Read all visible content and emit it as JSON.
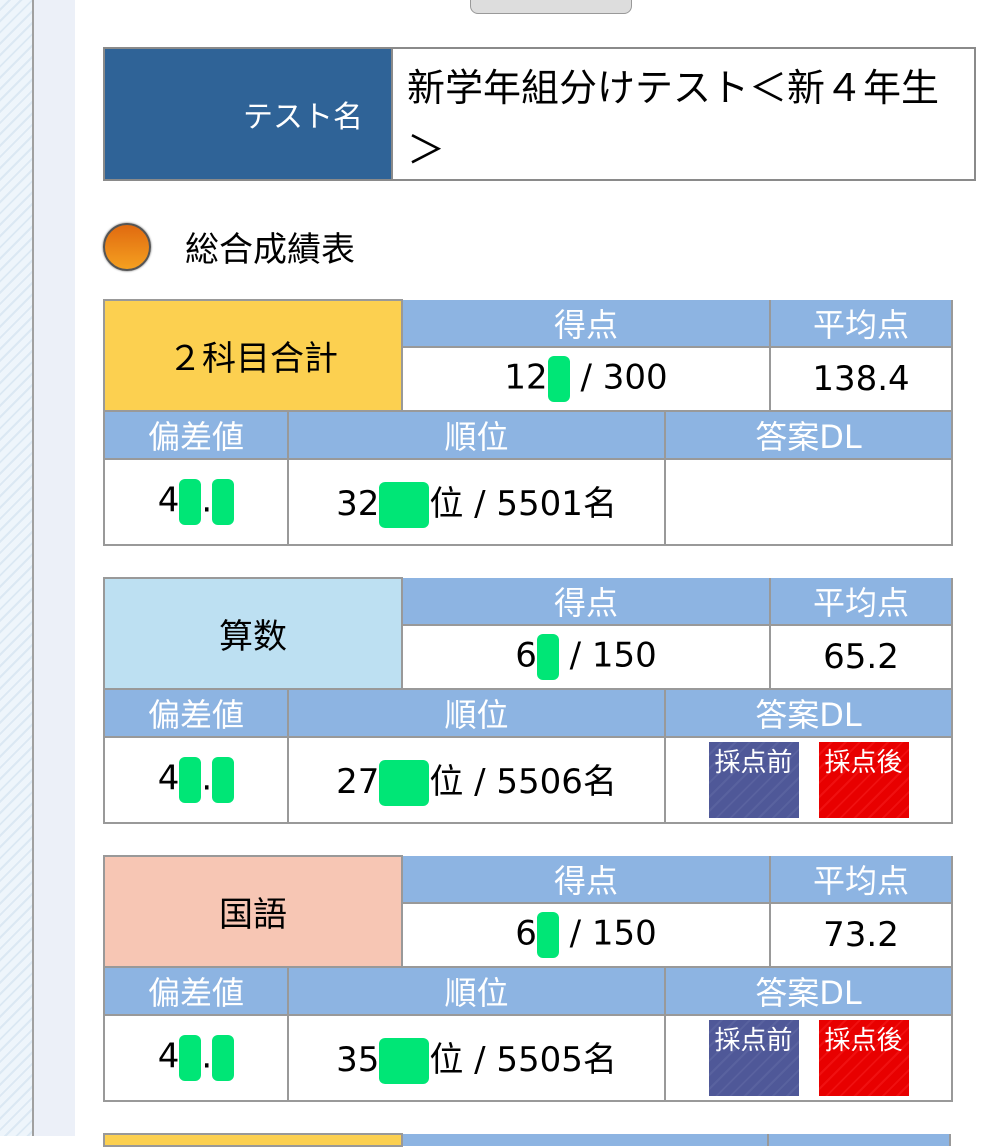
{
  "test_name": {
    "label": "テスト名",
    "value": "新学年組分けテスト＜新４年生＞"
  },
  "section_title": "総合成績表",
  "headers": {
    "score": "得点",
    "average": "平均点",
    "deviation": "偏差値",
    "rank": "順位",
    "answer_dl": "答案DL"
  },
  "buttons": {
    "before": "採点前",
    "after": "採点後"
  },
  "results": [
    {
      "subject": "２科目合計",
      "color": "#fcd050",
      "score_prefix": "12",
      "score_suffix": "/ 300",
      "average": "138.4",
      "dev_prefix": "4",
      "dev_mid": ".",
      "rank_prefix": "32",
      "rank_suffix": "位 / 5501名"
    },
    {
      "subject": "算数",
      "color": "#bde0f2",
      "score_prefix": "6",
      "score_suffix": "/ 150",
      "average": "65.2",
      "dev_prefix": "4",
      "dev_mid": ".",
      "rank_prefix": "27",
      "rank_suffix": "位 / 5506名"
    },
    {
      "subject": "国語",
      "color": "#f7c6b4",
      "score_prefix": "6",
      "score_suffix": "/ 150",
      "average": "73.2",
      "dev_prefix": "4",
      "dev_mid": ".",
      "rank_prefix": "35",
      "rank_suffix": "位 / 5505名"
    }
  ]
}
